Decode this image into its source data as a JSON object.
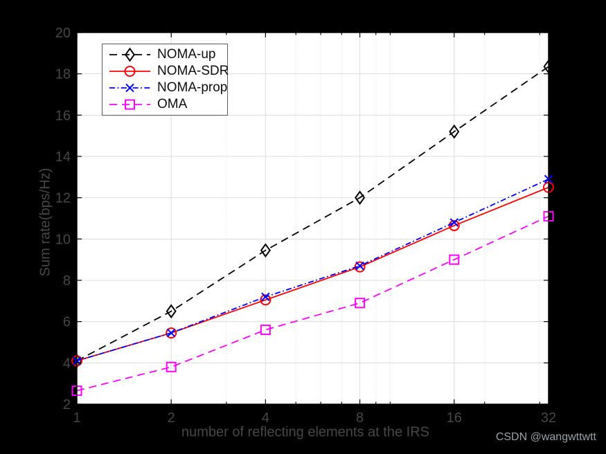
{
  "watermark": "CSDN @wangwttwtt",
  "colors": {
    "figure_background": "#000000",
    "plot_background": "#ffffff",
    "grid_major": "#dcdcdc",
    "grid_minor": "#d9d9d9",
    "axis_box": "#000000",
    "axis_text": "#47474b",
    "watermark_text": "#99a1ab",
    "legend_border": "#5a5a5a",
    "legend_text": "#0d0d0d"
  },
  "chart_data": {
    "type": "line",
    "title": "",
    "xlabel": "number of reflecting elements at the IRS",
    "ylabel": "Sum rate(bps/Hz)",
    "x_scale": "log2",
    "xlim": [
      1,
      32
    ],
    "ylim": [
      2,
      20
    ],
    "x_ticks": [
      1,
      2,
      4,
      8,
      16,
      32
    ],
    "y_ticks": [
      2,
      4,
      6,
      8,
      10,
      12,
      14,
      16,
      18,
      20
    ],
    "x_minor_gridlines": [
      3,
      5,
      6,
      7,
      9,
      10,
      20,
      30
    ],
    "grid": true,
    "legend_position": "top-left",
    "x": [
      1,
      2,
      4,
      8,
      16,
      32
    ],
    "series": [
      {
        "name": "NOMA-up",
        "color": "#000000",
        "linestyle": "dashed",
        "marker": "diamond",
        "values": [
          4.1,
          6.5,
          9.45,
          12.0,
          15.2,
          18.35
        ]
      },
      {
        "name": "NOMA-SDR",
        "color": "#ff0000",
        "linestyle": "solid",
        "marker": "circle",
        "values": [
          4.1,
          5.45,
          7.05,
          8.65,
          10.65,
          12.5
        ]
      },
      {
        "name": "NOMA-prop",
        "color": "#0000ff",
        "linestyle": "dashdot",
        "marker": "x",
        "values": [
          4.1,
          5.45,
          7.2,
          8.7,
          10.8,
          12.9
        ]
      },
      {
        "name": "OMA",
        "color": "#ff00ff",
        "linestyle": "dashed",
        "marker": "square",
        "values": [
          2.65,
          3.8,
          5.6,
          6.9,
          9.0,
          11.1
        ]
      }
    ]
  }
}
